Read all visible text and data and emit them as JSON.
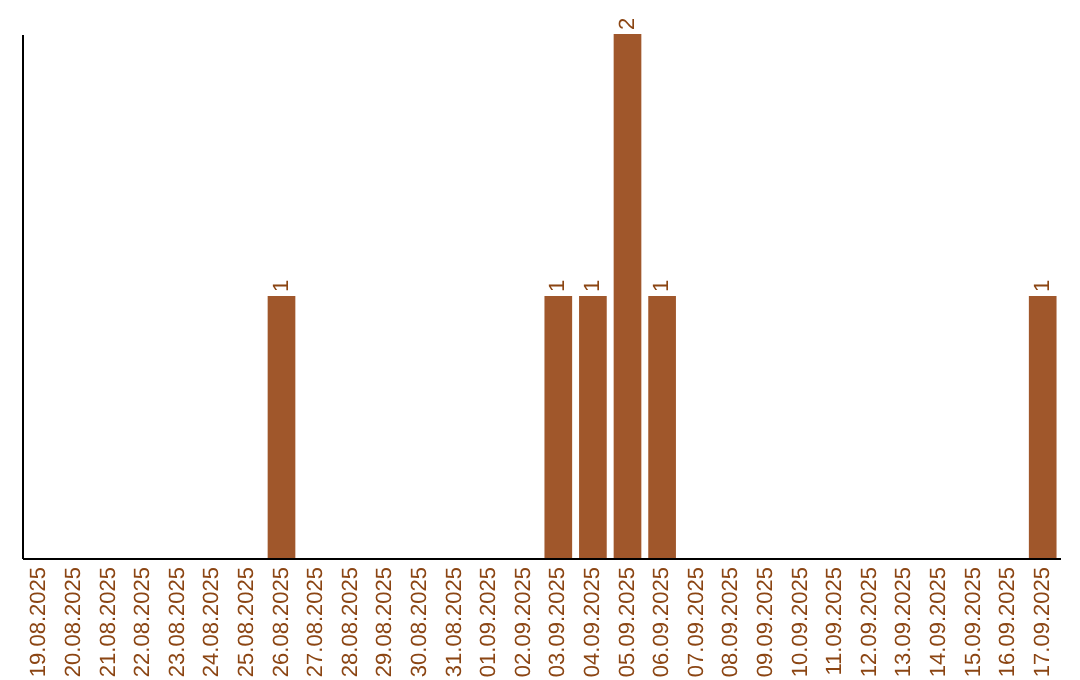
{
  "chart_data": {
    "type": "bar",
    "categories": [
      "19.08.2025",
      "20.08.2025",
      "21.08.2025",
      "22.08.2025",
      "23.08.2025",
      "24.08.2025",
      "25.08.2025",
      "26.08.2025",
      "27.08.2025",
      "28.08.2025",
      "29.08.2025",
      "30.08.2025",
      "31.08.2025",
      "01.09.2025",
      "02.09.2025",
      "03.09.2025",
      "04.09.2025",
      "05.09.2025",
      "06.09.2025",
      "07.09.2025",
      "08.09.2025",
      "09.09.2025",
      "10.09.2025",
      "11.09.2025",
      "12.09.2025",
      "13.09.2025",
      "14.09.2025",
      "15.09.2025",
      "16.09.2025",
      "17.09.2025"
    ],
    "values": [
      0,
      0,
      0,
      0,
      0,
      0,
      0,
      1,
      0,
      0,
      0,
      0,
      0,
      0,
      0,
      1,
      1,
      2,
      1,
      0,
      0,
      0,
      0,
      0,
      0,
      0,
      0,
      0,
      0,
      1
    ],
    "value_labels": [
      null,
      null,
      null,
      null,
      null,
      null,
      null,
      "1",
      null,
      null,
      null,
      null,
      null,
      null,
      null,
      "1",
      "1",
      "2",
      "1",
      null,
      null,
      null,
      null,
      null,
      null,
      null,
      null,
      null,
      null,
      "1"
    ],
    "color": "#a0572b",
    "ylim": [
      0,
      2
    ],
    "tick_labels": "x"
  }
}
